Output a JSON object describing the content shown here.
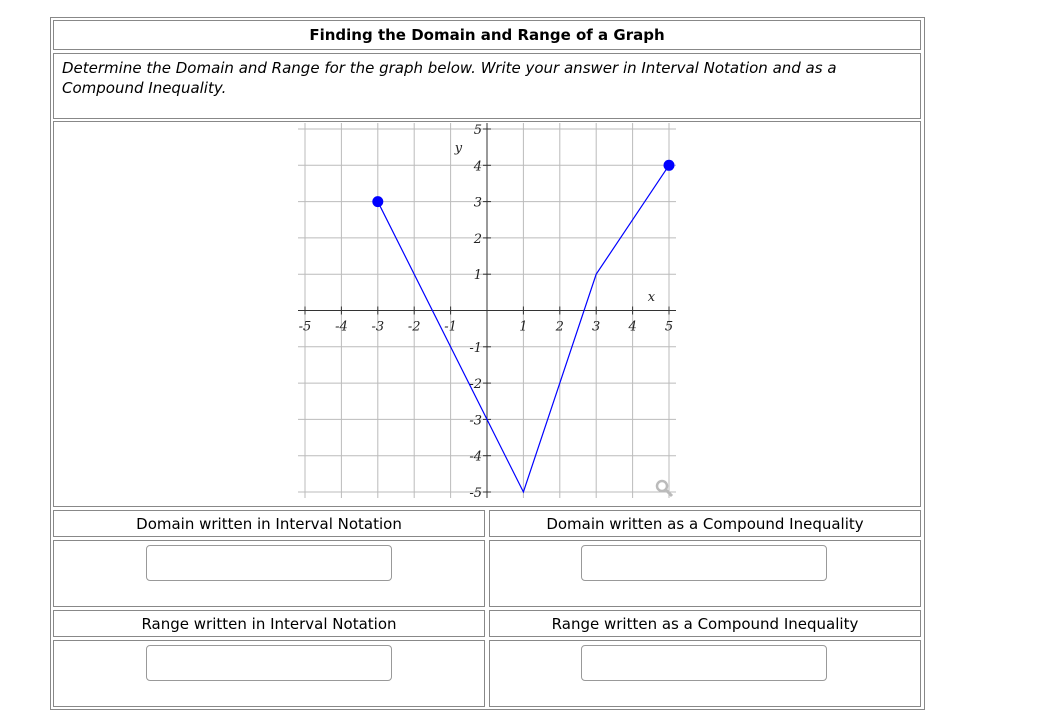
{
  "title": "Finding the Domain and Range of a Graph",
  "instructions": "Determine the Domain and Range for the graph below. Write your answer in Interval Notation and as a Compound Inequality.",
  "labels": {
    "domain_interval": "Domain written in Interval Notation",
    "domain_inequality": "Domain written as a Compound Inequality",
    "range_interval": "Range written in Interval Notation",
    "range_inequality": "Range written as a Compound Inequality"
  },
  "inputs": {
    "domain_interval": "",
    "domain_inequality": "",
    "range_interval": "",
    "range_inequality": ""
  },
  "chart_data": {
    "type": "line",
    "xlabel": "x",
    "ylabel": "y",
    "xlim": [
      -5,
      5
    ],
    "ylim": [
      -5,
      5
    ],
    "xticks": [
      -5,
      -4,
      -3,
      -2,
      -1,
      1,
      2,
      3,
      4,
      5
    ],
    "yticks": [
      -5,
      -4,
      -3,
      -2,
      -1,
      1,
      2,
      3,
      4,
      5
    ],
    "grid": true,
    "series": [
      {
        "points": [
          [
            -3,
            3
          ],
          [
            1,
            -5
          ],
          [
            3,
            1
          ],
          [
            5,
            4
          ]
        ],
        "closed_endpoints": [
          [
            -3,
            3
          ],
          [
            5,
            4
          ]
        ],
        "color": "#0000ff"
      }
    ],
    "zoom_icon": "magnifier-icon"
  }
}
